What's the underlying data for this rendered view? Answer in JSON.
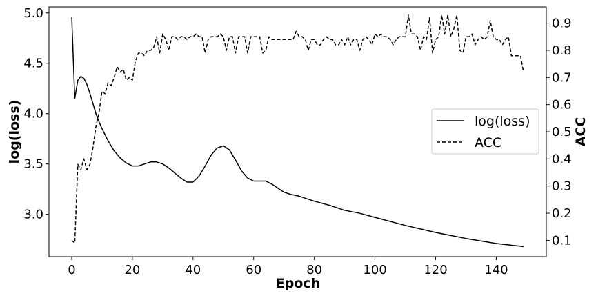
{
  "chart_data": {
    "type": "line",
    "title": "",
    "xlabel": "Epoch",
    "ylabel_left": "log(loss)",
    "ylabel_right": "ACC",
    "xlim": [
      -7.5,
      156.5
    ],
    "ylim_left": [
      2.58,
      5.06
    ],
    "ylim_right": [
      0.04,
      0.96
    ],
    "x_ticks": [
      0,
      20,
      40,
      60,
      80,
      100,
      120,
      140
    ],
    "y_left_ticks": [
      3.0,
      3.5,
      4.0,
      4.5,
      5.0
    ],
    "y_left_tick_labels": [
      "3.0",
      "3.5",
      "4.0",
      "4.5",
      "5.0"
    ],
    "y_right_ticks": [
      0.1,
      0.2,
      0.3,
      0.4,
      0.5,
      0.6,
      0.7,
      0.8,
      0.9
    ],
    "y_right_tick_labels": [
      "0.1",
      "0.2",
      "0.3",
      "0.4",
      "0.5",
      "0.6",
      "0.7",
      "0.8",
      "0.9"
    ],
    "grid": false,
    "legend_position": "center-right",
    "series": [
      {
        "name": "log(loss)",
        "axis": "left",
        "style": "solid",
        "color": "#000000",
        "x": [
          0,
          1,
          2,
          3,
          4,
          5,
          6,
          7,
          8,
          9,
          10,
          12,
          14,
          16,
          18,
          20,
          22,
          24,
          26,
          28,
          30,
          32,
          34,
          36,
          38,
          40,
          42,
          44,
          46,
          48,
          50,
          52,
          54,
          56,
          58,
          60,
          62,
          64,
          66,
          68,
          70,
          72,
          75,
          78,
          80,
          85,
          90,
          95,
          100,
          110,
          120,
          130,
          140,
          149
        ],
        "y": [
          4.96,
          4.15,
          4.33,
          4.37,
          4.35,
          4.29,
          4.2,
          4.1,
          4.0,
          3.92,
          3.85,
          3.73,
          3.63,
          3.56,
          3.51,
          3.48,
          3.48,
          3.5,
          3.52,
          3.52,
          3.5,
          3.46,
          3.41,
          3.36,
          3.32,
          3.32,
          3.38,
          3.48,
          3.59,
          3.66,
          3.68,
          3.64,
          3.54,
          3.43,
          3.36,
          3.33,
          3.33,
          3.33,
          3.3,
          3.26,
          3.22,
          3.2,
          3.18,
          3.15,
          3.13,
          3.09,
          3.04,
          3.01,
          2.97,
          2.89,
          2.82,
          2.76,
          2.71,
          2.68
        ]
      },
      {
        "name": "ACC",
        "axis": "right",
        "style": "dashed",
        "color": "#000000",
        "x": [
          0,
          1,
          2,
          3,
          4,
          5,
          6,
          7,
          8,
          9,
          10,
          11,
          12,
          13,
          14,
          15,
          16,
          17,
          18,
          19,
          20,
          21,
          22,
          23,
          24,
          25,
          26,
          27,
          28,
          29,
          30,
          31,
          32,
          33,
          34,
          35,
          36,
          37,
          38,
          39,
          40,
          41,
          42,
          43,
          44,
          45,
          46,
          47,
          48,
          49,
          50,
          51,
          52,
          53,
          54,
          55,
          56,
          57,
          58,
          59,
          60,
          61,
          62,
          63,
          64,
          65,
          66,
          67,
          68,
          69,
          70,
          71,
          72,
          73,
          74,
          75,
          76,
          77,
          78,
          79,
          80,
          81,
          82,
          83,
          84,
          85,
          86,
          87,
          88,
          89,
          90,
          91,
          92,
          93,
          94,
          95,
          96,
          97,
          98,
          99,
          100,
          101,
          102,
          103,
          104,
          105,
          106,
          107,
          108,
          109,
          110,
          111,
          112,
          113,
          114,
          115,
          116,
          117,
          118,
          119,
          120,
          121,
          122,
          123,
          124,
          125,
          126,
          127,
          128,
          129,
          130,
          131,
          132,
          133,
          134,
          135,
          136,
          137,
          138,
          139,
          140,
          141,
          142,
          143,
          144,
          145,
          146,
          147,
          148,
          149
        ],
        "y": [
          0.1,
          0.09,
          0.38,
          0.36,
          0.4,
          0.36,
          0.38,
          0.44,
          0.52,
          0.57,
          0.65,
          0.64,
          0.68,
          0.67,
          0.7,
          0.74,
          0.72,
          0.73,
          0.69,
          0.7,
          0.69,
          0.76,
          0.79,
          0.79,
          0.78,
          0.8,
          0.8,
          0.81,
          0.85,
          0.79,
          0.86,
          0.84,
          0.8,
          0.85,
          0.85,
          0.84,
          0.85,
          0.85,
          0.84,
          0.85,
          0.85,
          0.86,
          0.85,
          0.85,
          0.79,
          0.84,
          0.85,
          0.85,
          0.85,
          0.86,
          0.85,
          0.8,
          0.85,
          0.85,
          0.79,
          0.85,
          0.85,
          0.85,
          0.79,
          0.85,
          0.85,
          0.85,
          0.85,
          0.79,
          0.8,
          0.85,
          0.84,
          0.84,
          0.84,
          0.84,
          0.84,
          0.84,
          0.84,
          0.84,
          0.87,
          0.85,
          0.85,
          0.84,
          0.8,
          0.84,
          0.84,
          0.82,
          0.82,
          0.84,
          0.85,
          0.84,
          0.84,
          0.82,
          0.82,
          0.84,
          0.82,
          0.85,
          0.82,
          0.84,
          0.84,
          0.8,
          0.84,
          0.85,
          0.84,
          0.82,
          0.86,
          0.85,
          0.86,
          0.85,
          0.85,
          0.84,
          0.82,
          0.84,
          0.85,
          0.85,
          0.85,
          0.93,
          0.86,
          0.86,
          0.85,
          0.8,
          0.85,
          0.84,
          0.92,
          0.79,
          0.84,
          0.85,
          0.93,
          0.86,
          0.93,
          0.85,
          0.88,
          0.93,
          0.8,
          0.79,
          0.85,
          0.85,
          0.86,
          0.82,
          0.84,
          0.85,
          0.84,
          0.85,
          0.91,
          0.85,
          0.84,
          0.84,
          0.82,
          0.84,
          0.85,
          0.78,
          0.78,
          0.78,
          0.78,
          0.72
        ]
      }
    ]
  }
}
